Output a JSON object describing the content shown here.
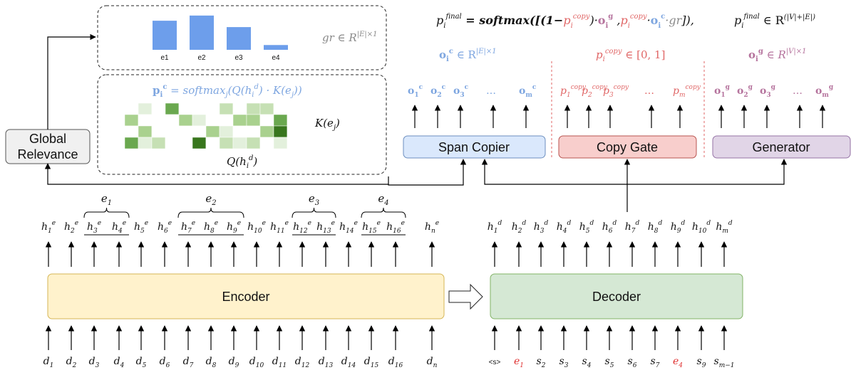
{
  "bars": {
    "values": [
      0.73,
      0.86,
      0.57,
      0.12
    ],
    "labels": [
      "e1",
      "e2",
      "e3",
      "e4"
    ],
    "color": "#6d9eeb",
    "caption": "gr ∈ R",
    "caption_sup": "|E|×1"
  },
  "attention": {
    "formula_main": "p",
    "formula_sub": "i",
    "formula_sup": "c",
    "formula_rest": " = softmax",
    "formula_rest_sub": "j",
    "formula_tail": "(Q(h",
    "formula_tail_sub": "i",
    "formula_tail_sup": "d",
    "formula_end": ") · K(e",
    "formula_end_sub": "j",
    "formula_close": "))",
    "k_label": "K(e",
    "k_sub": "j",
    "k_close": ")",
    "q_label": "Q(h",
    "q_sub": "i",
    "q_sup": "d",
    "q_close": ")",
    "grid": [
      [
        0,
        1,
        0,
        4,
        0,
        0,
        0,
        2,
        0,
        2,
        2,
        0,
        0
      ],
      [
        3,
        0,
        0,
        0,
        3,
        1,
        0,
        0,
        3,
        3,
        0,
        4,
        0
      ],
      [
        0,
        3,
        0,
        0,
        0,
        0,
        3,
        1,
        0,
        0,
        3,
        5,
        0
      ],
      [
        4,
        1,
        2,
        0,
        0,
        5,
        0,
        2,
        1,
        2,
        0,
        1,
        0
      ]
    ],
    "colors": [
      "#ffffff",
      "#e3f0dc",
      "#c6e0b4",
      "#a9d18e",
      "#6aa84f",
      "#38761d"
    ]
  },
  "global_relevance": {
    "line1": "Global",
    "line2": "Relevance"
  },
  "final_formula": {
    "lhs": "p",
    "lhs_sub": "i",
    "lhs_sup": "final",
    "eq": " = softmax([(1−",
    "pcopy": "p",
    "pcopy_sub": "i",
    "pcopy_sup": "copy",
    "dot1": ")·",
    "og": "o",
    "og_sub": "i",
    "og_sup": "g",
    "comma": " ,",
    "dot2": "·",
    "oc": "o",
    "oc_sub": "i",
    "oc_sup": "c",
    "gr": "·gr",
    "close": "]),",
    "rhs": "p",
    "rhs_sub": "i",
    "rhs_sup": "final",
    "in": " ∈ R",
    "in_sup": "(|V|+|E|)"
  },
  "span_copier": {
    "label": "Span Copier",
    "header": "o",
    "header_sub": "i",
    "header_sup": "c",
    "header_in": " ∈ R",
    "header_in_sup": "|E|×1",
    "outputs": [
      "o",
      "o",
      "o",
      "…",
      "o"
    ],
    "output_subs": [
      "1",
      "2",
      "3",
      "",
      "m"
    ],
    "output_sups": [
      "c",
      "c",
      "c",
      "",
      "c"
    ]
  },
  "copy_gate": {
    "label": "Copy Gate",
    "header": "p",
    "header_sub": "i",
    "header_sup": "copy",
    "header_in": " ∈ [0, 1]",
    "outputs": [
      "p",
      "p",
      "p",
      "…",
      "p"
    ],
    "output_subs": [
      "1",
      "2",
      "3",
      "",
      "m"
    ],
    "output_sup": "copy"
  },
  "generator": {
    "label": "Generator",
    "header": "o",
    "header_sub": "i",
    "header_sup": "g",
    "header_in": " ∈ R",
    "header_in_sup": "|V|×1",
    "outputs": [
      "o",
      "o",
      "o",
      "…",
      "o"
    ],
    "output_subs": [
      "1",
      "2",
      "3",
      "",
      "m"
    ],
    "output_sups": [
      "g",
      "g",
      "g",
      "",
      "g"
    ]
  },
  "encoder": {
    "label": "Encoder",
    "hidden_subs": [
      "1",
      "2",
      "3",
      "4",
      "5",
      "6",
      "7",
      "8",
      "9",
      "10",
      "11",
      "12",
      "13",
      "14",
      "15",
      "16",
      "n"
    ],
    "hidden_symbol": "h",
    "hidden_sup": "e",
    "input_symbol": "d",
    "input_subs": [
      "1",
      "2",
      "3",
      "4",
      "5",
      "6",
      "7",
      "8",
      "9",
      "10",
      "11",
      "12",
      "13",
      "14",
      "15",
      "16",
      "n"
    ],
    "entities": [
      {
        "label": "e",
        "sub": "1"
      },
      {
        "label": "e",
        "sub": "2"
      },
      {
        "label": "e",
        "sub": "3"
      },
      {
        "label": "e",
        "sub": "4"
      }
    ]
  },
  "decoder": {
    "label": "Decoder",
    "hidden_symbol": "h",
    "hidden_sup": "d",
    "hidden_subs": [
      "1",
      "2",
      "3",
      "4",
      "5",
      "6",
      "7",
      "8",
      "9",
      "10",
      "m"
    ],
    "inputs": [
      {
        "text": "<s>",
        "sub": "",
        "style": "plain"
      },
      {
        "text": "e",
        "sub": "1",
        "style": "red"
      },
      {
        "text": "s",
        "sub": "2",
        "style": "math"
      },
      {
        "text": "s",
        "sub": "3",
        "style": "math"
      },
      {
        "text": "s",
        "sub": "4",
        "style": "math"
      },
      {
        "text": "s",
        "sub": "5",
        "style": "math"
      },
      {
        "text": "s",
        "sub": "6",
        "style": "math"
      },
      {
        "text": "s",
        "sub": "7",
        "style": "math"
      },
      {
        "text": "e",
        "sub": "4",
        "style": "red"
      },
      {
        "text": "s",
        "sub": "9",
        "style": "math"
      },
      {
        "text": "s",
        "sub": "m−1",
        "style": "math"
      }
    ]
  }
}
